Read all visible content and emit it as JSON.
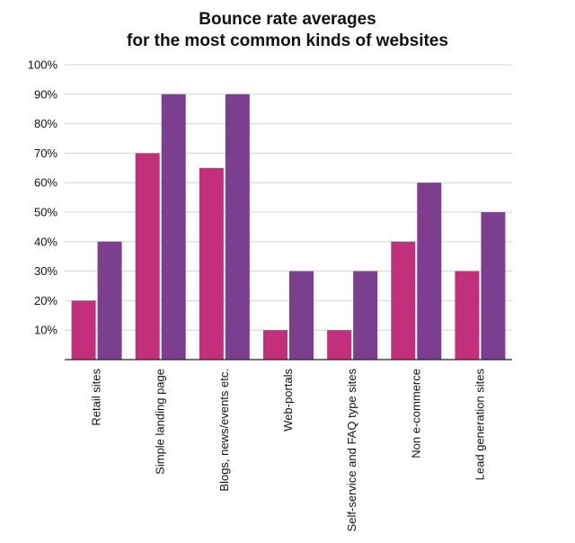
{
  "chart_data": {
    "type": "bar",
    "title_lines": [
      "Bounce rate averages",
      "for the most common kinds of websites"
    ],
    "categories": [
      "Retail sites",
      "Simple landing page",
      "Blogs, news/events etc.",
      "Web-portals",
      "Self-service and FAQ type sites",
      "Non e-commerce",
      "Lead generation sites"
    ],
    "series": [
      {
        "values": [
          20,
          70,
          65,
          10,
          10,
          40,
          30
        ],
        "color": "#c2307b"
      },
      {
        "values": [
          40,
          90,
          90,
          30,
          30,
          60,
          50
        ],
        "color": "#7c3f8f"
      }
    ],
    "ylim": [
      0,
      100
    ],
    "y_ticks": [
      {
        "value": 10,
        "label": "10%"
      },
      {
        "value": 20,
        "label": "20%"
      },
      {
        "value": 30,
        "label": "30%"
      },
      {
        "value": 40,
        "label": "40%"
      },
      {
        "value": 50,
        "label": "50%"
      },
      {
        "value": 60,
        "label": "60%"
      },
      {
        "value": 70,
        "label": "70%"
      },
      {
        "value": 80,
        "label": "80%"
      },
      {
        "value": 90,
        "label": "90%"
      },
      {
        "value": 100,
        "label": "100%"
      }
    ],
    "grid": true,
    "legend": "none"
  }
}
